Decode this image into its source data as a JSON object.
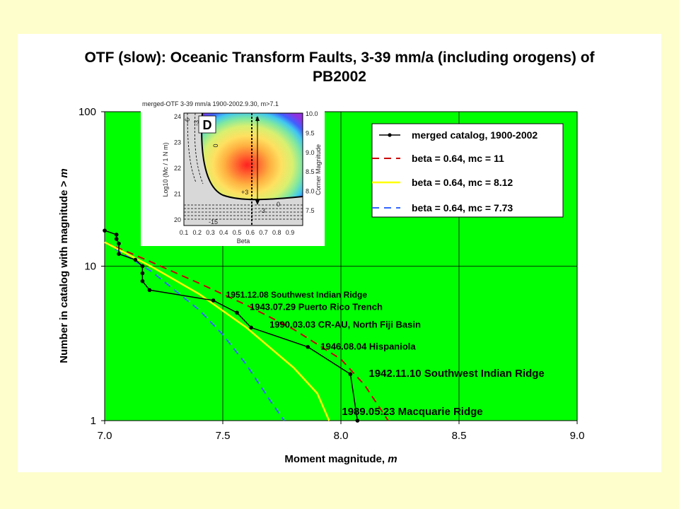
{
  "chart_data": {
    "type": "line",
    "title_line1": "OTF (slow): Oceanic Transform Faults, 3-39 mm/a (including orogens) of",
    "title_line2": "PB2002",
    "xlabel": "Moment magnitude, ",
    "xlabel_var": "m",
    "ylabel": "Number in catalog with magnitude  >  ",
    "ylabel_var": "m",
    "xlim": [
      7.0,
      9.0
    ],
    "ylim": [
      1,
      100
    ],
    "yscale": "log",
    "grid": true,
    "background_color": "#00ff00",
    "xticks": [
      "7.0",
      "7.5",
      "8.0",
      "8.5",
      "9.0"
    ],
    "yticks": [
      {
        "value": 1,
        "label": "1"
      },
      {
        "value": 10,
        "label": "10"
      },
      {
        "value": 100,
        "label": "100"
      }
    ],
    "legend_position": "top-right",
    "series": [
      {
        "name": "merged catalog, 1900-2002",
        "color": "#000000",
        "style": "solid-markers",
        "points": [
          [
            7.0,
            17
          ],
          [
            7.05,
            16
          ],
          [
            7.05,
            15
          ],
          [
            7.06,
            14
          ],
          [
            7.06,
            12
          ],
          [
            7.13,
            11
          ],
          [
            7.16,
            10
          ],
          [
            7.16,
            9
          ],
          [
            7.16,
            8
          ],
          [
            7.19,
            7
          ],
          [
            7.46,
            6
          ],
          [
            7.56,
            5
          ],
          [
            7.62,
            4
          ],
          [
            7.86,
            3
          ],
          [
            8.04,
            2
          ],
          [
            8.07,
            1
          ]
        ]
      },
      {
        "name": "beta = 0.64, mc = 11",
        "color": "#cc0000",
        "style": "dashed",
        "points": [
          [
            7.0,
            14.3
          ],
          [
            7.2,
            10.6
          ],
          [
            7.4,
            7.75
          ],
          [
            7.6,
            5.6
          ],
          [
            7.8,
            3.9
          ],
          [
            8.0,
            2.5
          ],
          [
            8.1,
            1.7
          ],
          [
            8.2,
            1.0
          ]
        ]
      },
      {
        "name": "beta = 0.64, mc = 8.12",
        "color": "#ffff00",
        "style": "solid",
        "points": [
          [
            7.0,
            14.3
          ],
          [
            7.2,
            9.9
          ],
          [
            7.4,
            6.6
          ],
          [
            7.6,
            4.0
          ],
          [
            7.8,
            2.2
          ],
          [
            7.9,
            1.5
          ],
          [
            7.95,
            1.0
          ]
        ]
      },
      {
        "name": "beta = 0.64, mc = 7.73",
        "color": "#3366ff",
        "style": "dashed",
        "points": [
          [
            7.0,
            14.3
          ],
          [
            7.2,
            9.2
          ],
          [
            7.4,
            5.2
          ],
          [
            7.5,
            3.6
          ],
          [
            7.6,
            2.3
          ],
          [
            7.7,
            1.35
          ],
          [
            7.76,
            1.0
          ]
        ]
      }
    ],
    "annotations": [
      {
        "text": "1951.12.08 Southwest Indian Ridge",
        "x": 7.46,
        "y": 6
      },
      {
        "text": "1943.07.29 Puerto Rico Trench",
        "x": 7.56,
        "y": 5
      },
      {
        "text": "1990.03.03 CR-AU, North Fiji Basin",
        "x": 7.62,
        "y": 4
      },
      {
        "text": "1946.08.04 Hispaniola",
        "x": 7.86,
        "y": 3
      },
      {
        "text": "1942.11.10 Southwest Indian Ridge",
        "x": 8.04,
        "y": 2
      },
      {
        "text": "1989.05.23 Macquarie Ridge",
        "x": 8.07,
        "y": 1
      }
    ],
    "inset": {
      "title": "merged-OTF 3-39 mm/a 1900-2002.9.30, m>7.1",
      "panel_label": "D",
      "xlabel": "Beta",
      "ylabel": "Log10 (Mc / 1 N m)",
      "ylabel_right": "Corner Magnitude",
      "xticks": [
        "0.1",
        "0.2",
        "0.3",
        "0.4",
        "0.5",
        "0.6",
        "0.7",
        "0.8",
        "0.9"
      ],
      "yticks_left": [
        "20",
        "21",
        "22",
        "23",
        "24"
      ],
      "yticks_right": [
        "7.5",
        "8.0",
        "8.5",
        "9.0",
        "9.5",
        "10.0"
      ],
      "contour_labels": [
        "-6",
        "-3",
        "0",
        "+3",
        "0",
        "-3",
        "-15",
        "?"
      ]
    }
  }
}
